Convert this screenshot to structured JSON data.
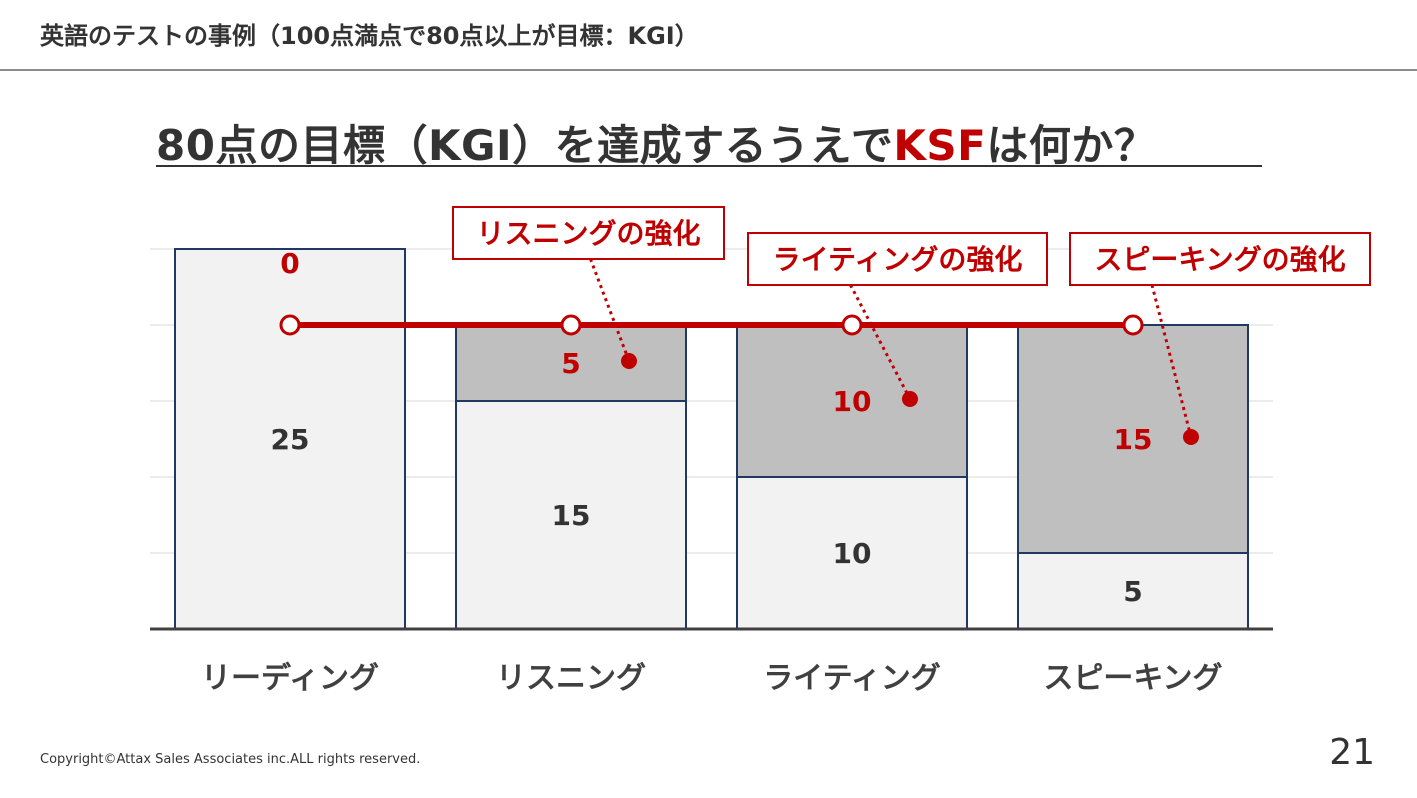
{
  "header": {
    "title": "英語のテストの事例（100点満点で80点以上が目標：KGI）"
  },
  "heading": {
    "prefix": "80点の目標（KGI）を達成するうえで",
    "highlight": "KSF",
    "suffix": "は何か？"
  },
  "chart_data": {
    "type": "bar",
    "stacked": true,
    "categories": [
      "リーディング",
      "リスニング",
      "ライティング",
      "スピーキング"
    ],
    "series": [
      {
        "values": [
          25,
          15,
          10,
          5
        ]
      },
      {
        "values": [
          0,
          5,
          10,
          15
        ]
      }
    ],
    "ylim": [
      0,
      25
    ],
    "grid": true,
    "target_line": {
      "value": 20
    },
    "callouts": [
      {
        "category": "リスニング",
        "label": "リスニングの強化"
      },
      {
        "category": "ライティング",
        "label": "ライティングの強化"
      },
      {
        "category": "スピーキング",
        "label": "スピーキングの強化"
      }
    ],
    "colors": {
      "base_fill": "#f2f2f2",
      "gap_fill": "#bfbfbf",
      "bar_border": "#1f3864",
      "accent": "#c00000",
      "text": "#333333"
    }
  },
  "footer": {
    "copyright": "Copyright©Attax Sales Associates inc.ALL rights reserved.",
    "page_number": "21"
  }
}
